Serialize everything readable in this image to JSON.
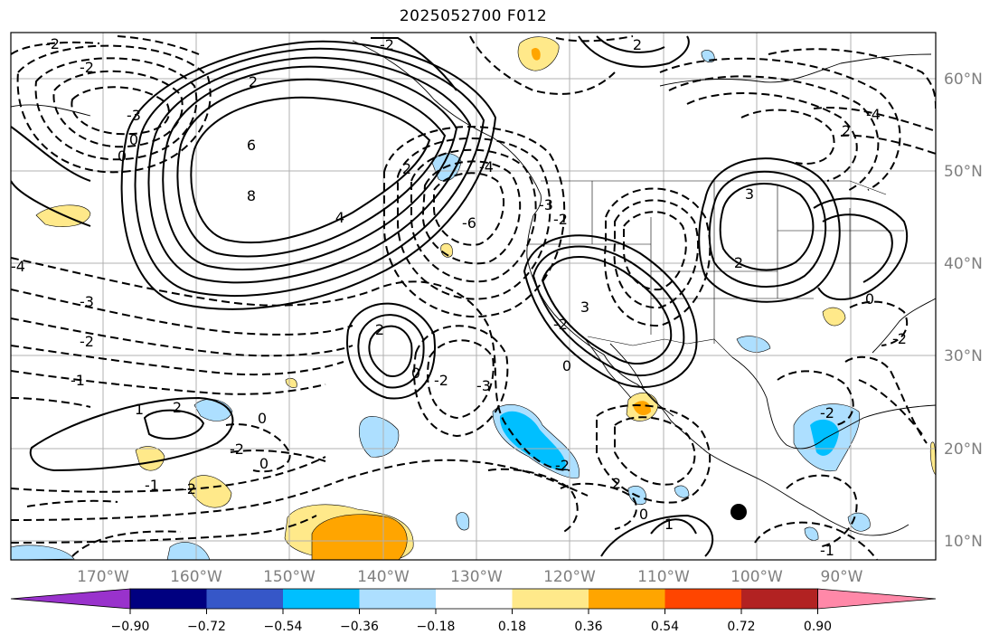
{
  "title": "2025052700 F012",
  "chart_data": {
    "type": "map",
    "title": "2025052700 F012",
    "projection": "plate-carree",
    "lon_range": [
      -178,
      -79
    ],
    "lat_range": [
      8,
      65
    ],
    "lon_ticks": [
      "170°W",
      "160°W",
      "150°W",
      "140°W",
      "130°W",
      "120°W",
      "110°W",
      "100°W",
      "90°W"
    ],
    "lat_ticks": [
      "60°N",
      "50°N",
      "40°N",
      "30°N",
      "20°N",
      "10°N"
    ],
    "grid": true,
    "contour_labels": [
      "-2",
      "-3",
      "0",
      "-2",
      "2",
      "2",
      "-4",
      "2",
      "-2",
      "0",
      "6",
      "8",
      "4",
      "2",
      "-6",
      "-3",
      "-4",
      "3",
      "2",
      "0",
      "-4",
      "-3",
      "-2",
      "-1",
      "2",
      "0",
      "-2",
      "-3",
      "3",
      "-2",
      "0",
      "1",
      "2",
      "0",
      "-2",
      "-1",
      "-2",
      "-2",
      "2",
      "-2",
      "0",
      "1",
      "0",
      "-1",
      "-2",
      "-2"
    ],
    "colorbar": {
      "ticks": [
        "−0.90",
        "−0.72",
        "−0.54",
        "−0.36",
        "−0.18",
        "0.18",
        "0.36",
        "0.54",
        "0.72",
        "0.90"
      ],
      "colors": [
        "#9932CC",
        "#000080",
        "#3657C8",
        "#00BFFF",
        "#ADDFFF",
        "#FFFFFF",
        "#FFE98A",
        "#FFA500",
        "#FF4500",
        "#B22222",
        "#FF88A8"
      ],
      "extend": "both"
    }
  }
}
